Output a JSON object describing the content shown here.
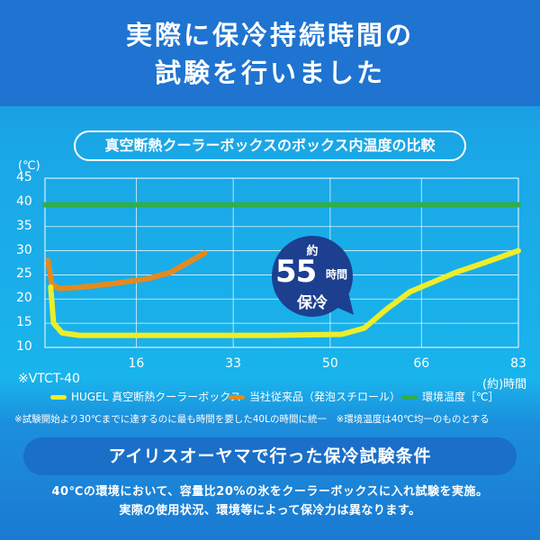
{
  "headline": {
    "line1": "実際に保冷持続時間の",
    "line2": "試験を行いました"
  },
  "chart_title": "真空断熱クーラーボックスのボックス内温度の比較",
  "chart_data": {
    "type": "line",
    "y_unit_label": "(℃)",
    "x_unit_label": "(約)時間",
    "yticks": [
      10,
      15,
      20,
      25,
      30,
      35,
      40,
      45
    ],
    "xticks": [
      16,
      33,
      50,
      66,
      83
    ],
    "xlim": [
      0,
      83
    ],
    "ylim": [
      10,
      45
    ],
    "grid": true,
    "series": [
      {
        "name": "HUGEL 真空断熱クーラーボックス",
        "color": "#ecee2a",
        "points": [
          [
            1,
            22.5
          ],
          [
            1.5,
            15
          ],
          [
            3,
            13
          ],
          [
            6,
            12.5
          ],
          [
            20,
            12.5
          ],
          [
            40,
            12.5
          ],
          [
            52,
            12.7
          ],
          [
            56,
            14
          ],
          [
            60,
            18
          ],
          [
            64,
            21.5
          ],
          [
            68,
            23.5
          ],
          [
            72,
            25.5
          ],
          [
            77,
            27.5
          ],
          [
            83,
            30
          ]
        ]
      },
      {
        "name": "当社従来品（発泡スチロール）",
        "color": "#e48a1e",
        "points": [
          [
            0.5,
            28
          ],
          [
            1.2,
            23
          ],
          [
            2.5,
            22.2
          ],
          [
            6,
            22.4
          ],
          [
            12,
            23.2
          ],
          [
            18,
            24.2
          ],
          [
            22,
            25.5
          ],
          [
            25,
            27.5
          ],
          [
            28,
            29.5
          ]
        ]
      },
      {
        "name": "環境温度［℃］",
        "color": "#2fae49",
        "points": [
          [
            0,
            39.5
          ],
          [
            83,
            39.5
          ]
        ]
      }
    ]
  },
  "model_label": "※VTCT-40",
  "bubble": {
    "prefix": "約",
    "number": "55",
    "unit": "時間",
    "suffix": "保冷"
  },
  "footnote": "※試験開始より30℃までに達するのに最も時間を要した40Lの時間に統一　※環境温度は40℃均一のものとする",
  "conditions_title": "アイリスオーヤマで行った保冷試験条件",
  "conditions_line1": "40℃の環境において、容量比20%の氷をクーラーボックスに入れ試験を実施。",
  "conditions_line2": "実際の使用状況、環境等によって保冷力は異なります。"
}
